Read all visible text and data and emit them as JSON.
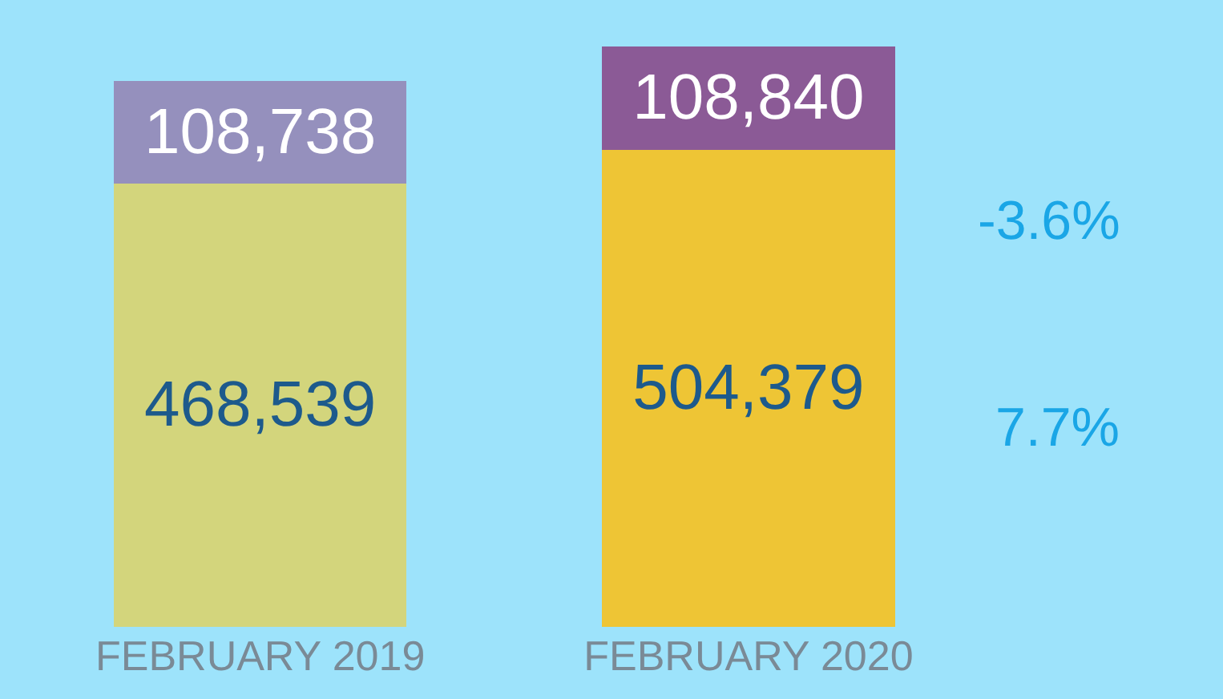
{
  "chart_data": {
    "type": "bar",
    "stacked": true,
    "grid": false,
    "tick_labels": "x",
    "categories": [
      "FEBRUARY 2019",
      "FEBRUARY 2020"
    ],
    "series": [
      {
        "colors": [
          "#d3d57c",
          "#eec535"
        ],
        "values": [
          468539,
          504379
        ],
        "value_labels": [
          "468,539",
          "504,379"
        ]
      },
      {
        "colors": [
          "#9590bd",
          "#8b5a96"
        ],
        "values": [
          108738,
          108840
        ],
        "value_labels": [
          "108,738",
          "108,840"
        ]
      }
    ],
    "annotations": [
      "-3.6%",
      "7.7%"
    ]
  }
}
